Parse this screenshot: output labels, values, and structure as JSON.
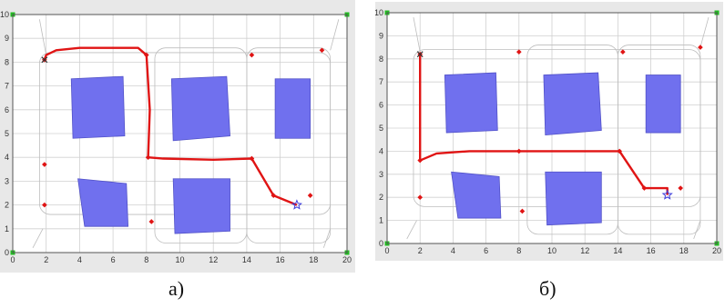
{
  "captions": [
    "а)",
    "б)"
  ],
  "colors": {
    "frame_bg": "#e8e8e8",
    "plot_bg": "#ffffff",
    "grid": "#d0d0d0",
    "obstacle": "#7070ee",
    "obstacle_stroke": "#5252c8",
    "path": "#e01414",
    "waypoint": "#e01414",
    "corner": "#22bb22",
    "contour": "#bdbdbd",
    "start": "#333333",
    "goal": "#4040dd"
  },
  "axes": {
    "xlim": [
      0,
      20
    ],
    "ylim": [
      0,
      10
    ],
    "xticks": [
      0,
      2,
      4,
      6,
      8,
      10,
      12,
      14,
      16,
      18,
      20
    ],
    "yticks": [
      0,
      1,
      2,
      3,
      4,
      5,
      6,
      7,
      8,
      9,
      10
    ],
    "xtick_labels": [
      "0",
      "2",
      "4",
      "6",
      "8",
      "10",
      "12",
      "14",
      "16",
      "18",
      "20"
    ],
    "ytick_labels": [
      "0",
      "1",
      "2",
      "3",
      "4",
      "5",
      "6",
      "7",
      "8",
      "9",
      "10"
    ]
  },
  "obstacles": [
    [
      [
        3.5,
        7.3
      ],
      [
        6.6,
        7.4
      ],
      [
        6.7,
        4.9
      ],
      [
        3.6,
        4.8
      ]
    ],
    [
      [
        9.5,
        7.3
      ],
      [
        12.8,
        7.4
      ],
      [
        13.0,
        4.9
      ],
      [
        9.6,
        4.7
      ]
    ],
    [
      [
        15.7,
        7.3
      ],
      [
        17.8,
        7.3
      ],
      [
        17.8,
        4.8
      ],
      [
        15.7,
        4.8
      ]
    ],
    [
      [
        3.9,
        3.1
      ],
      [
        6.8,
        2.9
      ],
      [
        6.9,
        1.1
      ],
      [
        4.3,
        1.1
      ]
    ],
    [
      [
        9.6,
        3.1
      ],
      [
        13.0,
        3.1
      ],
      [
        13.0,
        0.9
      ],
      [
        9.7,
        0.8
      ]
    ]
  ],
  "contours": [
    [
      [
        1.6,
        9.8
      ],
      [
        2.0,
        8.3
      ]
    ],
    [
      [
        1.2,
        0.2
      ],
      [
        1.8,
        1.0
      ]
    ],
    [
      [
        18.6,
        0.2
      ],
      [
        19.0,
        1.0
      ]
    ],
    [
      [
        19.5,
        9.8
      ],
      [
        19.0,
        8.5
      ]
    ]
  ],
  "corners": [
    [
      0,
      0
    ],
    [
      0,
      10
    ],
    [
      20,
      0
    ],
    [
      20,
      10
    ]
  ],
  "charts": [
    {
      "path": [
        [
          1.9,
          8.1
        ],
        [
          2.0,
          8.3
        ],
        [
          2.6,
          8.5
        ],
        [
          4.0,
          8.6
        ],
        [
          6.5,
          8.6
        ],
        [
          7.5,
          8.6
        ],
        [
          8.0,
          8.3
        ],
        [
          8.2,
          6.0
        ],
        [
          8.1,
          4.0
        ],
        [
          9.0,
          3.95
        ],
        [
          12.0,
          3.9
        ],
        [
          14.3,
          3.95
        ],
        [
          15.6,
          2.4
        ],
        [
          17.0,
          2.0
        ]
      ],
      "waypoints": [
        [
          1.9,
          8.1
        ],
        [
          8.0,
          8.3
        ],
        [
          14.3,
          8.3
        ],
        [
          18.5,
          8.5
        ],
        [
          1.9,
          3.7
        ],
        [
          1.9,
          2.0
        ],
        [
          8.1,
          4.0
        ],
        [
          14.3,
          3.95
        ],
        [
          15.6,
          2.4
        ],
        [
          17.8,
          2.4
        ],
        [
          8.3,
          1.3
        ]
      ],
      "start": [
        1.9,
        8.1
      ],
      "goal": [
        17.0,
        2.0
      ]
    },
    {
      "path": [
        [
          2.0,
          8.2
        ],
        [
          2.0,
          3.6
        ],
        [
          3.0,
          3.9
        ],
        [
          5.0,
          4.0
        ],
        [
          8.0,
          4.0
        ],
        [
          10.0,
          4.0
        ],
        [
          14.1,
          4.0
        ],
        [
          15.6,
          2.4
        ],
        [
          17.0,
          2.4
        ],
        [
          17.0,
          2.1
        ]
      ],
      "waypoints": [
        [
          2.0,
          8.2
        ],
        [
          8.0,
          8.3
        ],
        [
          14.3,
          8.3
        ],
        [
          19.0,
          8.5
        ],
        [
          2.0,
          3.6
        ],
        [
          2.0,
          2.0
        ],
        [
          8.0,
          4.0
        ],
        [
          14.1,
          4.0
        ],
        [
          15.6,
          2.4
        ],
        [
          17.8,
          2.4
        ],
        [
          8.2,
          1.4
        ]
      ],
      "start": [
        2.0,
        8.2
      ],
      "goal": [
        17.0,
        2.1
      ]
    }
  ]
}
